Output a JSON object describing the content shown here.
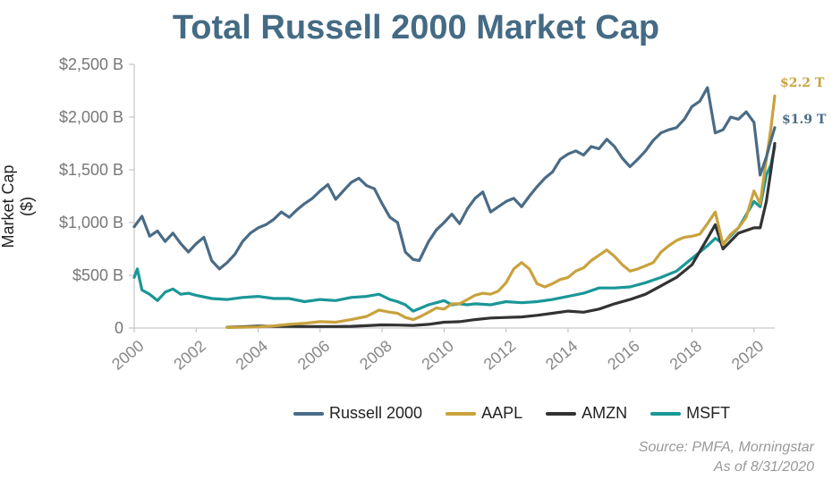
{
  "title": "Total Russell 2000 Market Cap",
  "colors": {
    "russell": "#4a6b86",
    "aapl": "#c9a23d",
    "amzn": "#333333",
    "msft": "#1a9797",
    "title": "#456b84"
  },
  "source": "Source: PMFA, Morningstar",
  "as_of": "As of 8/31/2020",
  "chart_data": {
    "type": "line",
    "title": "Total Russell 2000 Market Cap",
    "xlabel": "",
    "ylabel": "Market Cap ($)",
    "xlim": [
      2000,
      2020.67
    ],
    "ylim": [
      0,
      2500
    ],
    "x_ticks": [
      "2000",
      "2002",
      "2004",
      "2006",
      "2008",
      "2010",
      "2012",
      "2014",
      "2016",
      "2018",
      "2020"
    ],
    "y_ticks": [
      "0",
      "$500 B",
      "$1,000 B",
      "$1,500 B",
      "$2,000 B",
      "$2,500 B"
    ],
    "grid": false,
    "legend_position": "bottom",
    "end_labels": [
      {
        "text": "$2.2 T",
        "color": "#c9a23d",
        "y": 2200
      },
      {
        "text": "$1.9 T",
        "color": "#4a6b86",
        "y": 1900
      }
    ],
    "series": [
      {
        "name": "Russell 2000",
        "color": "#4a6b86",
        "x": [
          2000.0,
          2000.25,
          2000.5,
          2000.75,
          2001.0,
          2001.25,
          2001.5,
          2001.75,
          2002.0,
          2002.25,
          2002.5,
          2002.75,
          2003.0,
          2003.25,
          2003.5,
          2003.75,
          2004.0,
          2004.25,
          2004.5,
          2004.75,
          2005.0,
          2005.25,
          2005.5,
          2005.75,
          2006.0,
          2006.25,
          2006.5,
          2006.75,
          2007.0,
          2007.25,
          2007.5,
          2007.75,
          2008.0,
          2008.25,
          2008.5,
          2008.75,
          2009.0,
          2009.2,
          2009.5,
          2009.75,
          2010.0,
          2010.25,
          2010.5,
          2010.75,
          2011.0,
          2011.25,
          2011.5,
          2011.75,
          2012.0,
          2012.25,
          2012.5,
          2012.75,
          2013.0,
          2013.25,
          2013.5,
          2013.75,
          2014.0,
          2014.25,
          2014.5,
          2014.75,
          2015.0,
          2015.25,
          2015.5,
          2015.75,
          2016.0,
          2016.25,
          2016.5,
          2016.75,
          2017.0,
          2017.25,
          2017.5,
          2017.75,
          2018.0,
          2018.25,
          2018.5,
          2018.75,
          2019.0,
          2019.25,
          2019.5,
          2019.75,
          2020.0,
          2020.2,
          2020.4,
          2020.55,
          2020.67
        ],
        "values": [
          960,
          1060,
          870,
          920,
          820,
          900,
          800,
          720,
          800,
          860,
          640,
          560,
          620,
          700,
          820,
          900,
          950,
          980,
          1030,
          1100,
          1050,
          1120,
          1180,
          1230,
          1300,
          1360,
          1220,
          1300,
          1380,
          1420,
          1350,
          1320,
          1180,
          1050,
          1000,
          720,
          650,
          640,
          820,
          930,
          1000,
          1080,
          990,
          1130,
          1230,
          1290,
          1100,
          1150,
          1200,
          1230,
          1150,
          1250,
          1340,
          1420,
          1480,
          1600,
          1650,
          1680,
          1640,
          1720,
          1700,
          1790,
          1720,
          1610,
          1530,
          1600,
          1680,
          1780,
          1850,
          1880,
          1900,
          1980,
          2100,
          2150,
          2280,
          1850,
          1880,
          2000,
          1980,
          2050,
          1950,
          1450,
          1620,
          1780,
          1900
        ]
      },
      {
        "name": "AAPL",
        "color": "#c9a23d",
        "x": [
          2003.0,
          2003.5,
          2004.0,
          2004.5,
          2005.0,
          2005.5,
          2006.0,
          2006.5,
          2007.0,
          2007.5,
          2007.9,
          2008.25,
          2008.5,
          2008.75,
          2009.0,
          2009.25,
          2009.5,
          2009.75,
          2010.0,
          2010.25,
          2010.5,
          2010.75,
          2011.0,
          2011.25,
          2011.5,
          2011.75,
          2012.0,
          2012.25,
          2012.5,
          2012.75,
          2013.0,
          2013.25,
          2013.5,
          2013.75,
          2014.0,
          2014.25,
          2014.5,
          2014.75,
          2015.0,
          2015.25,
          2015.5,
          2015.75,
          2016.0,
          2016.25,
          2016.5,
          2016.75,
          2017.0,
          2017.25,
          2017.5,
          2017.75,
          2018.0,
          2018.25,
          2018.5,
          2018.75,
          2019.0,
          2019.25,
          2019.5,
          2019.75,
          2020.0,
          2020.2,
          2020.4,
          2020.55,
          2020.67
        ],
        "values": [
          5,
          8,
          10,
          20,
          35,
          45,
          60,
          55,
          80,
          110,
          170,
          150,
          140,
          100,
          80,
          110,
          150,
          190,
          180,
          230,
          230,
          270,
          310,
          330,
          320,
          350,
          430,
          560,
          620,
          560,
          420,
          390,
          420,
          460,
          480,
          540,
          570,
          640,
          690,
          740,
          680,
          600,
          540,
          560,
          590,
          620,
          720,
          780,
          830,
          860,
          870,
          890,
          990,
          1100,
          790,
          890,
          950,
          1050,
          1300,
          1180,
          1600,
          1900,
          2200
        ]
      },
      {
        "name": "AMZN",
        "color": "#333333",
        "x": [
          2003.0,
          2003.5,
          2004.0,
          2004.5,
          2005.0,
          2005.5,
          2006.0,
          2006.5,
          2007.0,
          2007.5,
          2008.0,
          2008.5,
          2009.0,
          2009.5,
          2010.0,
          2010.5,
          2011.0,
          2011.5,
          2012.0,
          2012.5,
          2013.0,
          2013.5,
          2014.0,
          2014.5,
          2015.0,
          2015.5,
          2016.0,
          2016.5,
          2017.0,
          2017.5,
          2018.0,
          2018.5,
          2018.75,
          2019.0,
          2019.5,
          2020.0,
          2020.2,
          2020.4,
          2020.55,
          2020.67
        ],
        "values": [
          8,
          12,
          18,
          16,
          15,
          14,
          14,
          14,
          16,
          22,
          30,
          28,
          25,
          35,
          55,
          60,
          80,
          95,
          100,
          105,
          120,
          140,
          160,
          150,
          180,
          230,
          270,
          320,
          400,
          480,
          600,
          850,
          980,
          750,
          900,
          950,
          950,
          1200,
          1500,
          1750
        ]
      },
      {
        "name": "MSFT",
        "color": "#1a9797",
        "x": [
          2000.0,
          2000.1,
          2000.25,
          2000.5,
          2000.75,
          2001.0,
          2001.25,
          2001.5,
          2001.75,
          2002.0,
          2002.5,
          2003.0,
          2003.5,
          2004.0,
          2004.5,
          2005.0,
          2005.5,
          2006.0,
          2006.5,
          2007.0,
          2007.5,
          2007.9,
          2008.25,
          2008.5,
          2008.75,
          2009.0,
          2009.25,
          2009.5,
          2009.75,
          2010.0,
          2010.25,
          2010.5,
          2010.75,
          2011.0,
          2011.5,
          2012.0,
          2012.5,
          2013.0,
          2013.5,
          2014.0,
          2014.5,
          2015.0,
          2015.5,
          2016.0,
          2016.5,
          2017.0,
          2017.5,
          2018.0,
          2018.5,
          2018.75,
          2019.0,
          2019.5,
          2020.0,
          2020.2,
          2020.4,
          2020.55,
          2020.67
        ],
        "values": [
          480,
          560,
          360,
          320,
          260,
          340,
          370,
          320,
          330,
          310,
          280,
          270,
          290,
          300,
          280,
          280,
          250,
          270,
          260,
          290,
          300,
          320,
          270,
          250,
          220,
          160,
          190,
          220,
          240,
          260,
          220,
          230,
          220,
          230,
          220,
          250,
          240,
          250,
          270,
          300,
          330,
          380,
          380,
          390,
          430,
          480,
          540,
          660,
          780,
          850,
          800,
          950,
          1200,
          1150,
          1450,
          1550,
          1720
        ]
      }
    ]
  }
}
